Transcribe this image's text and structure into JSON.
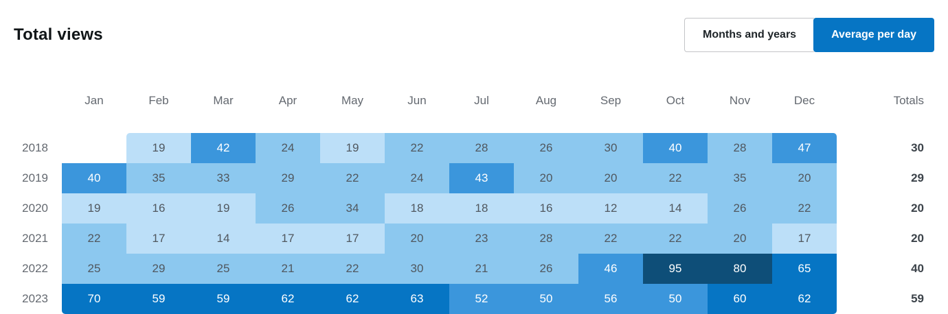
{
  "header": {
    "title": "Total views",
    "toggle": {
      "options": [
        {
          "label": "Months and years",
          "active": false
        },
        {
          "label": "Average per day",
          "active": true
        }
      ]
    }
  },
  "colors": {
    "accent": "#0675C4",
    "scale": [
      "#ffffff",
      "#BCDFF8",
      "#8CC8EF",
      "#3B96DC",
      "#0675C4",
      "#0E4E78"
    ],
    "thresholds": [
      20,
      40,
      59,
      80
    ],
    "cell_text_dark": "#50575e",
    "cell_text_light": "#ffffff",
    "label_gray": "#646970"
  },
  "chart_data": {
    "type": "heatmap",
    "title": "Total views",
    "mode": "Average per day",
    "categories": [
      "Jan",
      "Feb",
      "Mar",
      "Apr",
      "May",
      "Jun",
      "Jul",
      "Aug",
      "Sep",
      "Oct",
      "Nov",
      "Dec"
    ],
    "totals_label": "Totals",
    "rows": [
      {
        "year": "2018",
        "values": [
          null,
          19,
          42,
          24,
          19,
          22,
          28,
          26,
          30,
          40,
          28,
          47
        ],
        "total": 30
      },
      {
        "year": "2019",
        "values": [
          40,
          35,
          33,
          29,
          22,
          24,
          43,
          20,
          20,
          22,
          35,
          20
        ],
        "total": 29
      },
      {
        "year": "2020",
        "values": [
          19,
          16,
          19,
          26,
          34,
          18,
          18,
          16,
          12,
          14,
          26,
          22
        ],
        "total": 20
      },
      {
        "year": "2021",
        "values": [
          22,
          17,
          14,
          17,
          17,
          20,
          23,
          28,
          22,
          22,
          20,
          17
        ],
        "total": 20
      },
      {
        "year": "2022",
        "values": [
          25,
          29,
          25,
          21,
          22,
          30,
          21,
          26,
          46,
          95,
          80,
          65
        ],
        "total": 40
      },
      {
        "year": "2023",
        "values": [
          70,
          59,
          59,
          62,
          62,
          63,
          52,
          50,
          56,
          50,
          60,
          62
        ],
        "total": 59
      }
    ],
    "legend_position": "none",
    "grid": false
  }
}
